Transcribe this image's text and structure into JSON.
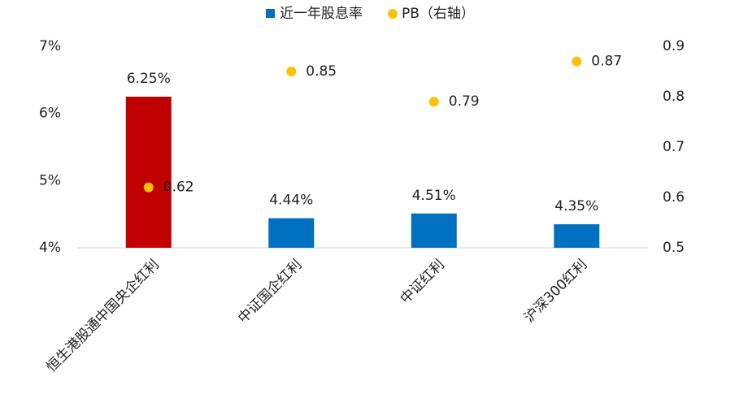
{
  "chart_data": {
    "type": "bar",
    "categories": [
      "恒生港股通中国央企红利",
      "中证国企红利",
      "中证红利",
      "沪深300红利"
    ],
    "series": [
      {
        "name": "近一年股息率",
        "type": "bar",
        "color": "#0070c0",
        "colors": [
          "#c00000",
          "#0070c0",
          "#0070c0",
          "#0070c0"
        ],
        "values": [
          6.25,
          4.44,
          4.51,
          4.35
        ],
        "value_labels": [
          "6.25%",
          "4.44%",
          "4.51%",
          "4.35%"
        ]
      },
      {
        "name": "PB（右轴）",
        "type": "scatter",
        "axis": "y2",
        "color": "#ffc000",
        "values": [
          0.62,
          0.85,
          0.79,
          0.87
        ]
      }
    ],
    "ylim": [
      4,
      7
    ],
    "yticks": [
      {
        "value": 4,
        "label": "4%"
      },
      {
        "value": 5,
        "label": "5%"
      },
      {
        "value": 6,
        "label": "6%"
      },
      {
        "value": 7,
        "label": "7%"
      }
    ],
    "y2lim": [
      0.5,
      0.9
    ],
    "y2ticks": [
      0.5,
      0.6,
      0.7,
      0.8,
      0.9
    ],
    "grid": false,
    "legend": "top"
  }
}
